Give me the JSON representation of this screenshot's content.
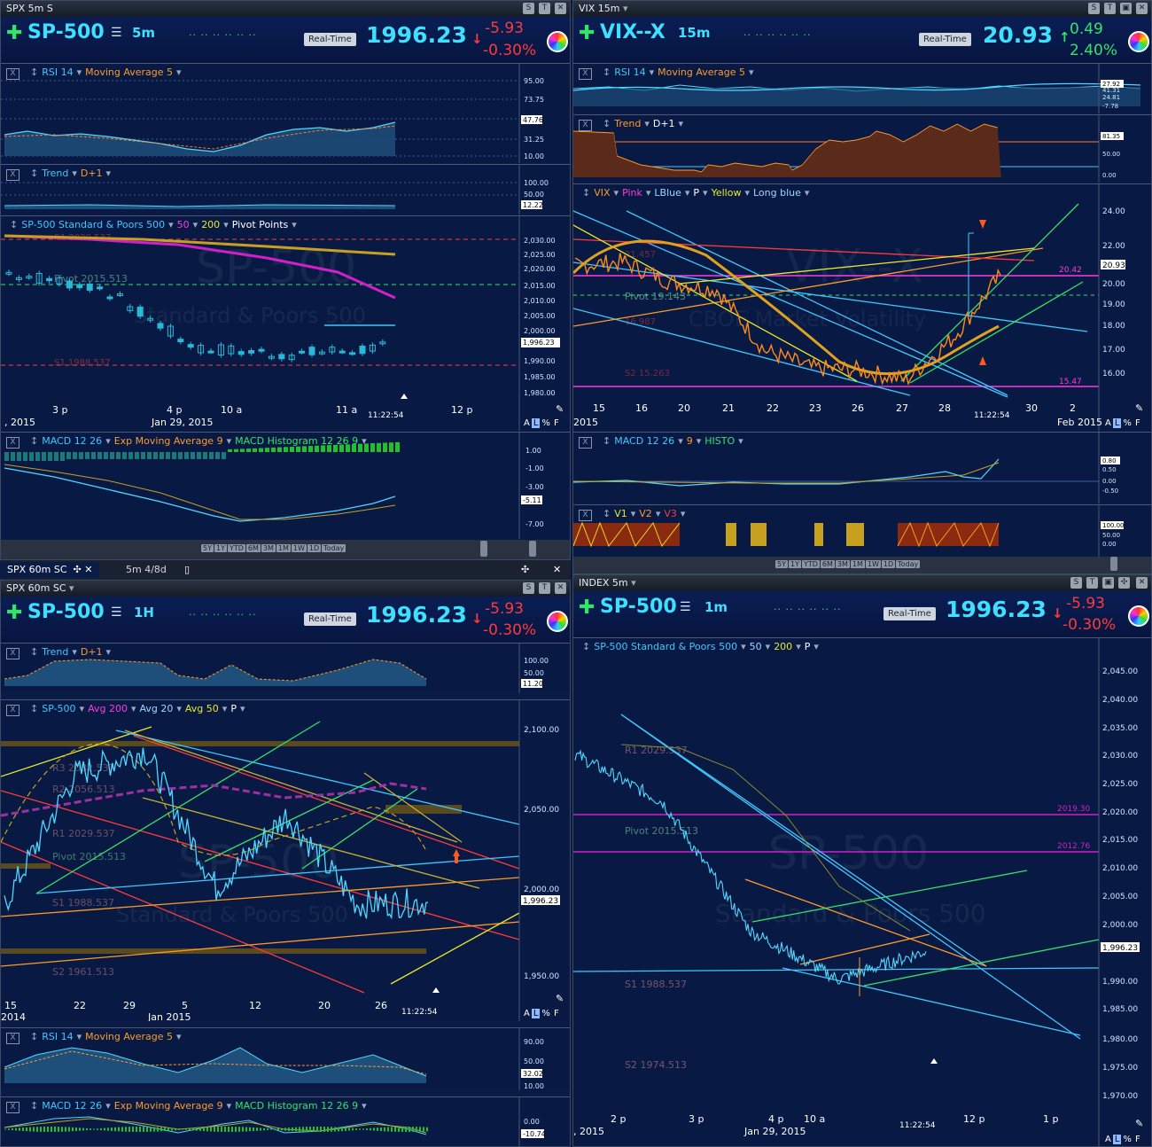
{
  "panels": {
    "tl": {
      "title": "SPX 5m S",
      "symbol": "SP-500",
      "interval": "5m",
      "realtime": "Real-Time",
      "price": "1996.23",
      "change": "-5.93",
      "change_pct": "-0.30%",
      "rsi": {
        "label": "RSI 14",
        "ma": "Moving Average 5",
        "ticks": [
          "95.00",
          "73.75",
          "47.76",
          "31.25",
          "10.00"
        ]
      },
      "trend": {
        "label": "Trend",
        "dplus": "D+1",
        "ticks": [
          "100.00",
          "50.00",
          "12.22"
        ]
      },
      "main": {
        "label": "SP-500 Standard & Poors 500",
        "a": "50",
        "b": "200",
        "c": "Pivot Points",
        "ticks": [
          "2,030.00",
          "2,025.00",
          "2,020.00",
          "2,015.00",
          "2,010.00",
          "2,005.00",
          "2,000.00",
          "1,996.23",
          "1,990.00",
          "1,985.00",
          "1,980.00"
        ],
        "watermark": "SP-500",
        "watermark2": "Standard & Poors 500",
        "r1": "R1 2029.537",
        "pivot": "Pivot 2015.513",
        "s1": "S1 1988.537",
        "xlabels": [
          ", 2015",
          "3 p",
          "4 p",
          "Jan 29, 2015",
          "10 a",
          "11 a",
          "12 p"
        ],
        "time": "11:22:54"
      },
      "macd": {
        "label": "MACD 12 26",
        "b": "Exp Moving Average 9",
        "c": "MACD Histogram 12 26 9",
        "ticks": [
          "1.00",
          "-1.00",
          "-3.00",
          "-5.11",
          "-7.00"
        ]
      },
      "ranges": [
        "5Y",
        "1Y",
        "YTD",
        "6M",
        "3M",
        "1M",
        "1W",
        "1D",
        "Today"
      ]
    },
    "tr": {
      "title": "VIX 15m",
      "symbol": "VIX--X",
      "interval": "15m",
      "realtime": "Real-Time",
      "price": "20.93",
      "change": "0.49",
      "change_pct": "2.40%",
      "rsi": {
        "label": "RSI 14",
        "ma": "Moving Average 5",
        "ticks": [
          "27.92",
          "41.31",
          "24.81",
          "-7.78"
        ]
      },
      "trend": {
        "label": "Trend",
        "dplus": "D+1",
        "ticks": [
          "81.35",
          "50.00",
          "0.00"
        ]
      },
      "main": {
        "label": "VIX",
        "a": "Pink",
        "b": "LBlue",
        "c": "P",
        "d": "Yellow",
        "e": "Long blue",
        "ticks": [
          "24.00",
          "22.00",
          "20.93",
          "20.00",
          "19.00",
          "18.00",
          "17.00",
          "16.00"
        ],
        "lvl_top": "20.42",
        "lvl_bot": "15.47",
        "pivot": "Pivot 19.143",
        "r1": "21.457",
        "s1": "16.987",
        "s2": "S2 15.263",
        "watermark": "VIX--X",
        "watermark2": "CBOE Market Volatility",
        "xlabels": [
          "15",
          "16",
          "20",
          "21",
          "22",
          "23",
          "26",
          "27",
          "28",
          "30",
          "2"
        ],
        "xyear": "2015",
        "xfeb": "Feb 2015",
        "time": "11:22:54"
      },
      "macd": {
        "label": "MACD 12 26",
        "b": "9",
        "c": "HISTO",
        "ticks": [
          "0.80",
          "0.50",
          "0.00",
          "-0.50"
        ]
      },
      "v": {
        "a": "V1",
        "b": "V2",
        "c": "V3",
        "ticks": [
          "100.00",
          "50.00",
          "0.00"
        ]
      },
      "ranges": [
        "5Y",
        "1Y",
        "YTD",
        "6M",
        "3M",
        "1M",
        "1W",
        "1D",
        "Today"
      ]
    },
    "bl": {
      "tab1": "SPX 60m SC",
      "tab2": "5m 4/8d",
      "title": "SPX 60m SC",
      "symbol": "SP-500",
      "interval": "1H",
      "realtime": "Real-Time",
      "price": "1996.23",
      "change": "-5.93",
      "change_pct": "-0.30%",
      "trend": {
        "label": "Trend",
        "dplus": "D+1",
        "ticks": [
          "100.00",
          "50.00",
          "11.20"
        ]
      },
      "main": {
        "label": "SP-500",
        "a": "Avg 200",
        "b": "Avg 20",
        "c": "Avg 50",
        "d": "P",
        "ticks": [
          "2,100.00",
          "2,050.00",
          "2,000.00",
          "1,996.23",
          "1,950.00"
        ],
        "r3": "R3 2082.537",
        "r2": "R2 2056.513",
        "r1": "R1 2029.537",
        "pivot": "Pivot 2015.513",
        "s1": "S1 1988.537",
        "s2": "S2 1961.513",
        "watermark": "SP-500",
        "watermark2": "Standard & Poors 500",
        "xlabels": [
          "15",
          "22",
          "29",
          "5",
          "12",
          "20",
          "26"
        ],
        "xyear": "2014",
        "xjan": "Jan 2015",
        "time": "11:22:54"
      },
      "rsi": {
        "label": "RSI 14",
        "ma": "Moving Average 5",
        "ticks": [
          "90.00",
          "50.00",
          "32.02",
          "10.00"
        ]
      },
      "macd": {
        "label": "MACD 12 26",
        "b": "Exp Moving Average 9",
        "c": "MACD Histogram 12 26 9",
        "ticks": [
          "0.00",
          "-10.74"
        ]
      }
    },
    "br": {
      "title": "INDEX 5m",
      "symbol": "SP-500",
      "interval": "1m",
      "realtime": "Real-Time",
      "price": "1996.23",
      "change": "-5.93",
      "change_pct": "-0.30%",
      "main": {
        "label": "SP-500 Standard & Poors 500",
        "a": "50",
        "b": "200",
        "c": "P",
        "ticks": [
          "2,045.00",
          "2,040.00",
          "2,035.00",
          "2,030.00",
          "2,025.00",
          "2,020.00",
          "2,015.00",
          "2,010.00",
          "2,005.00",
          "2,000.00",
          "1,996.23",
          "1,990.00",
          "1,985.00",
          "1,980.00",
          "1,975.00",
          "1,970.00"
        ],
        "lvl1": "2019.30",
        "lvl2": "2012.76",
        "r1": "R1 2029.537",
        "pivot": "Pivot 2015.513",
        "s1": "S1 1988.537",
        "s2": "S2 1974.513",
        "watermark": "SP-500",
        "watermark2": "Standard & Poors 500",
        "xlabels": [
          ", 2015",
          "2 p",
          "3 p",
          "4 p",
          "10 a",
          "Jan 29, 2015",
          "12 p",
          "1 p"
        ],
        "time": "11:22:54"
      }
    }
  },
  "chart_data": [
    {
      "type": "line",
      "title": "SP-500 5m",
      "ylim": [
        1978,
        2034
      ],
      "x": [
        "3 p",
        "4 p",
        "10 a",
        "11 a",
        "12 p"
      ],
      "series": [
        {
          "name": "SP-500",
          "values": [
            2021,
            2016,
            1996,
            1994,
            1996.23
          ]
        }
      ]
    },
    {
      "type": "line",
      "title": "VIX--X 15m",
      "ylim": [
        15.2,
        24.4
      ],
      "x": [
        "15",
        "16",
        "20",
        "21",
        "22",
        "23",
        "26",
        "27",
        "28",
        "30"
      ],
      "series": [
        {
          "name": "VIX",
          "values": [
            21.4,
            21.6,
            20.6,
            20.2,
            17.2,
            16.3,
            16.2,
            15.7,
            17.8,
            20.93
          ]
        }
      ]
    },
    {
      "type": "line",
      "title": "SP-500 60m",
      "ylim": [
        1935,
        2110
      ],
      "x": [
        "15",
        "22",
        "29",
        "5",
        "12",
        "20",
        "26"
      ],
      "series": [
        {
          "name": "SP-500",
          "values": [
            1995,
            2075,
            2090,
            2005,
            2050,
            1995,
            1996.23
          ]
        }
      ]
    },
    {
      "type": "line",
      "title": "SP-500 1m",
      "ylim": [
        1967,
        2049
      ],
      "x": [
        "2 p",
        "3 p",
        "4 p",
        "10 a",
        "12 p"
      ],
      "series": [
        {
          "name": "SP-500",
          "values": [
            2033,
            2024,
            2000,
            1991,
            1996.23
          ]
        }
      ]
    }
  ]
}
